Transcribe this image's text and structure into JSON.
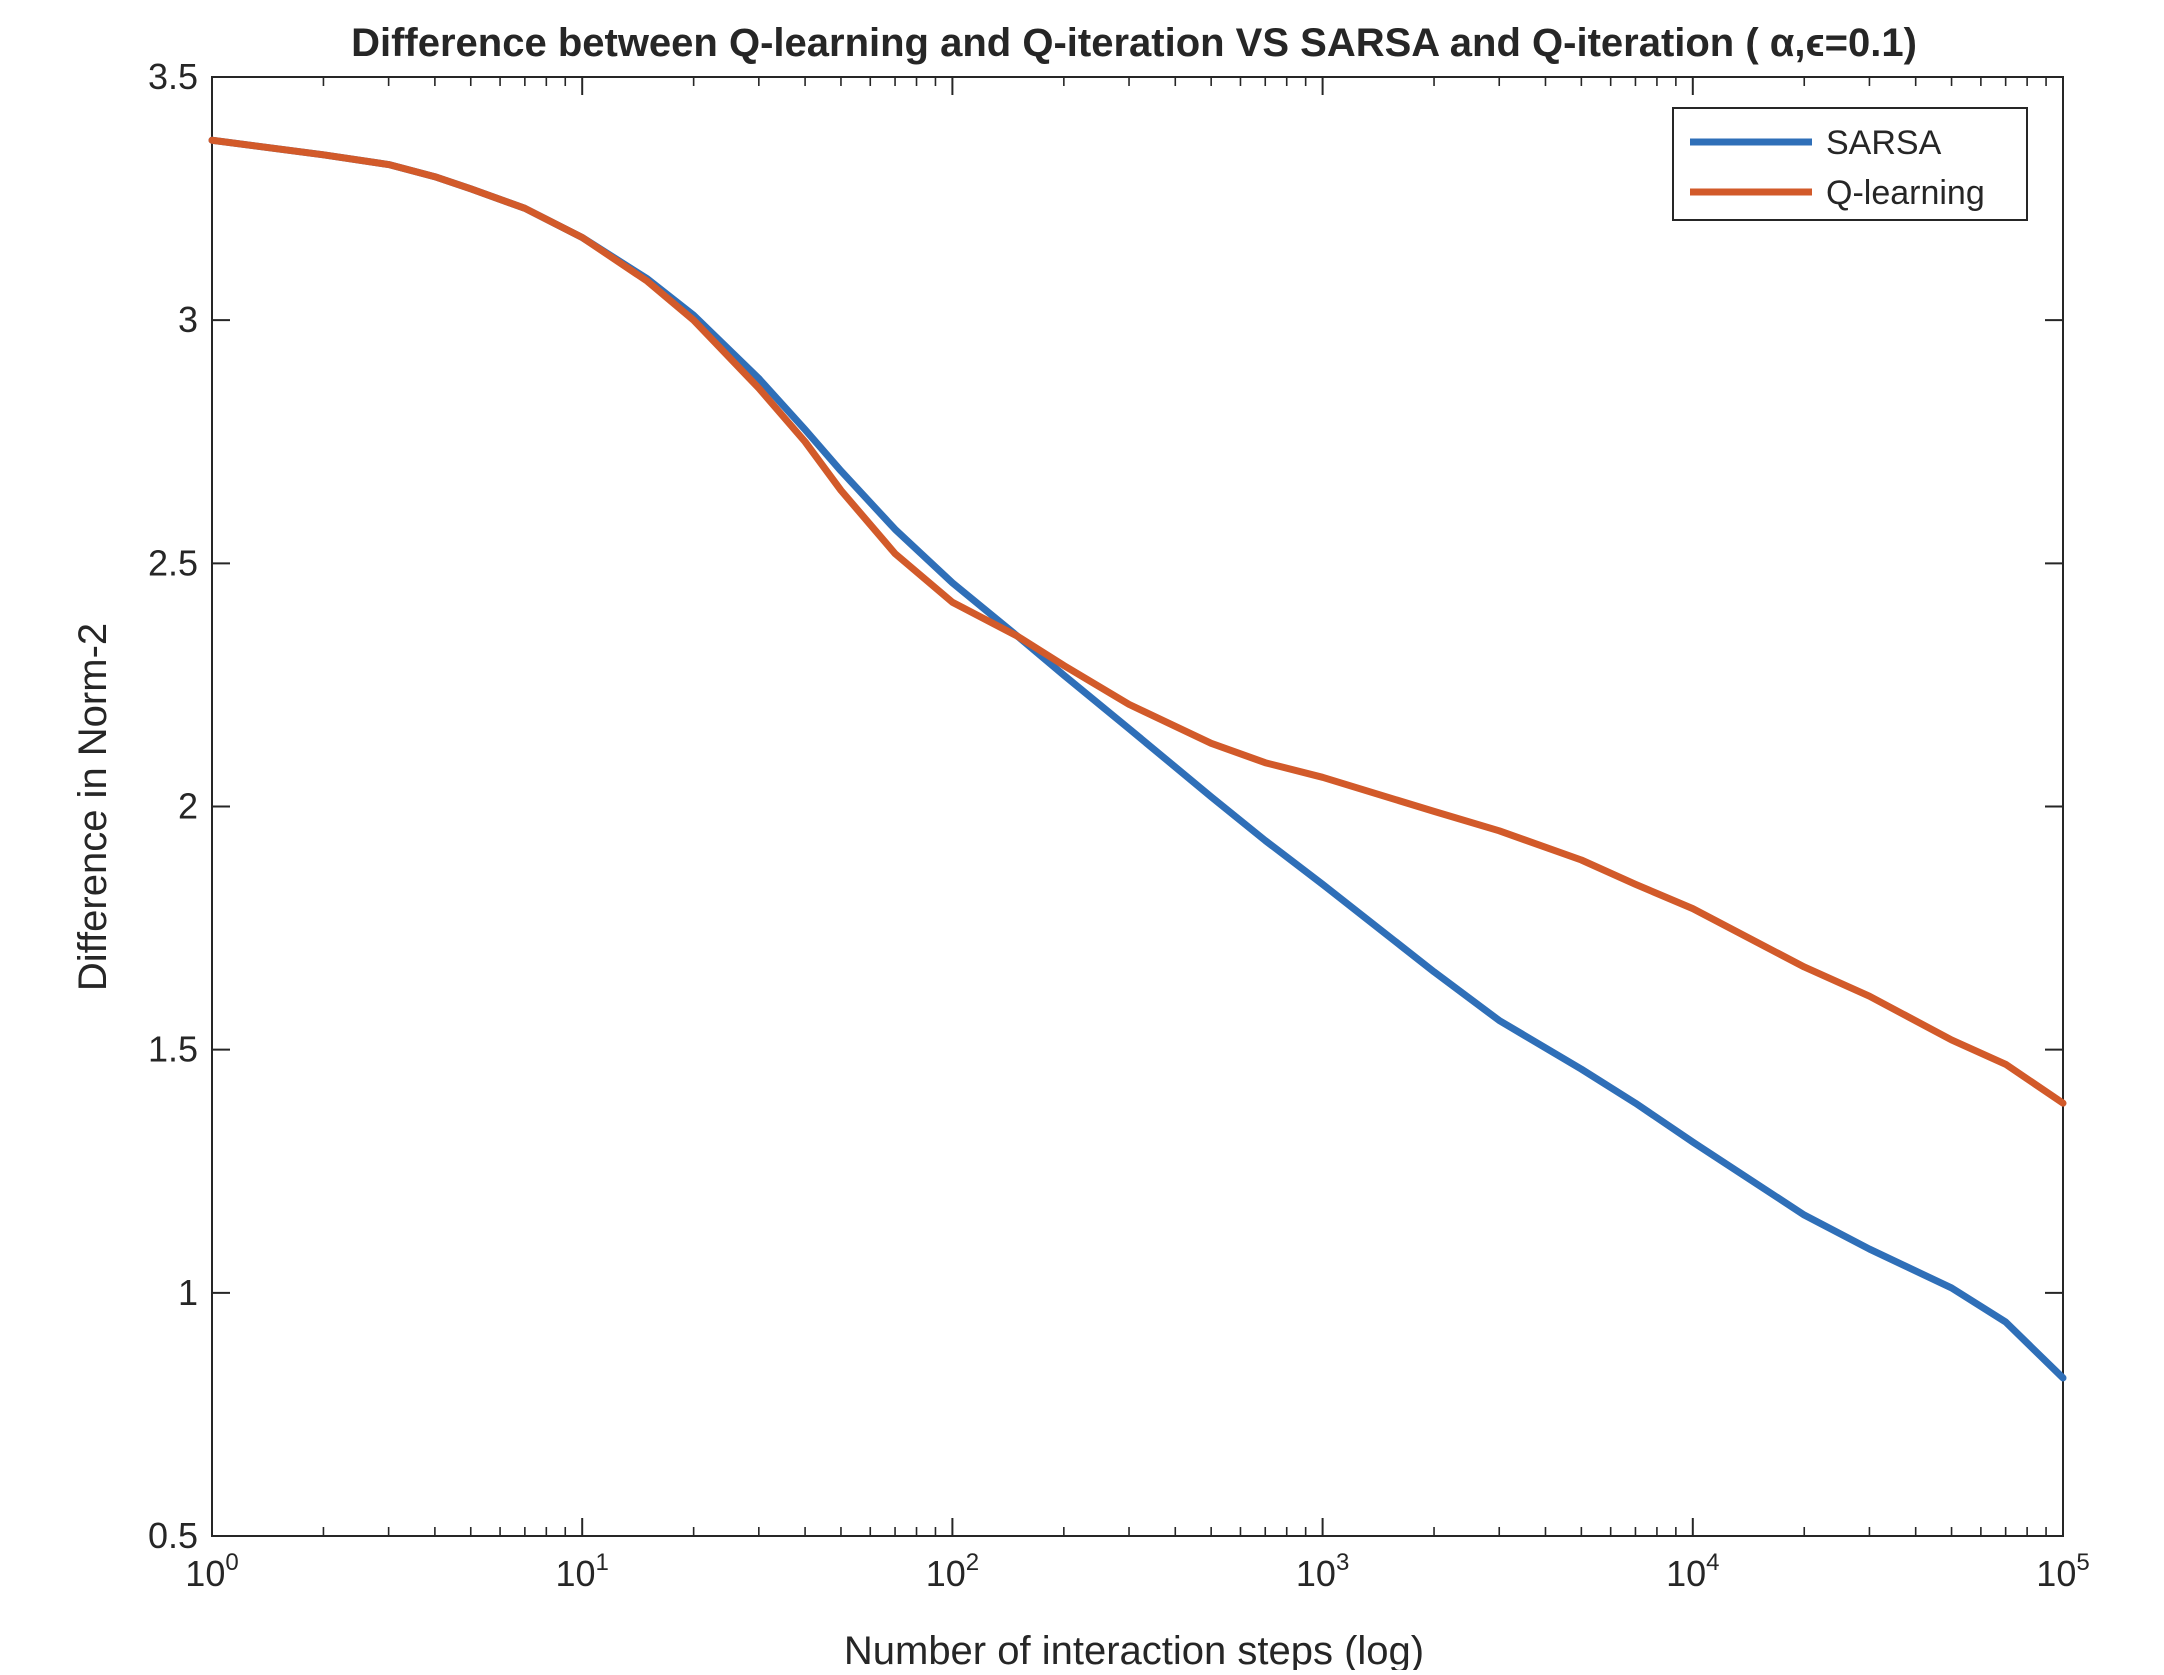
{
  "chart_data": {
    "type": "line",
    "title": "Difference between Q-learning and Q-iteration VS SARSA and Q-iteration ( α,ϵ=0.1)",
    "xlabel": "Number of interaction steps (log)",
    "ylabel": "Difference in Norm-2",
    "x_scale": "log",
    "xlim": [
      1,
      100000
    ],
    "ylim": [
      0.5,
      3.5
    ],
    "x_ticks": [
      {
        "base": "10",
        "exp": "0",
        "value": 1
      },
      {
        "base": "10",
        "exp": "1",
        "value": 10
      },
      {
        "base": "10",
        "exp": "2",
        "value": 100
      },
      {
        "base": "10",
        "exp": "3",
        "value": 1000
      },
      {
        "base": "10",
        "exp": "4",
        "value": 10000
      },
      {
        "base": "10",
        "exp": "5",
        "value": 100000
      }
    ],
    "y_ticks": [
      "0.5",
      "1",
      "1.5",
      "2",
      "2.5",
      "3",
      "3.5"
    ],
    "grid": false,
    "legend_position": "top-right",
    "series": [
      {
        "name": "SARSA",
        "color": "#2f6fb8",
        "x": [
          1,
          2,
          3,
          4,
          5,
          7,
          10,
          15,
          20,
          30,
          40,
          50,
          70,
          100,
          150,
          200,
          300,
          500,
          700,
          1000,
          2000,
          3000,
          5000,
          7000,
          10000,
          20000,
          30000,
          50000,
          70000,
          100000
        ],
        "y": [
          3.37,
          3.34,
          3.32,
          3.295,
          3.27,
          3.23,
          3.17,
          3.085,
          3.01,
          2.88,
          2.775,
          2.69,
          2.57,
          2.46,
          2.35,
          2.27,
          2.16,
          2.02,
          1.93,
          1.84,
          1.66,
          1.56,
          1.46,
          1.39,
          1.31,
          1.16,
          1.09,
          1.01,
          0.94,
          0.825
        ]
      },
      {
        "name": "Q-learning",
        "color": "#d25a2a",
        "x": [
          1,
          2,
          3,
          4,
          5,
          7,
          10,
          15,
          20,
          30,
          40,
          50,
          70,
          100,
          150,
          200,
          300,
          500,
          700,
          1000,
          2000,
          3000,
          5000,
          7000,
          10000,
          20000,
          30000,
          50000,
          70000,
          100000
        ],
        "y": [
          3.37,
          3.34,
          3.32,
          3.295,
          3.27,
          3.23,
          3.17,
          3.08,
          3.0,
          2.86,
          2.75,
          2.65,
          2.52,
          2.42,
          2.35,
          2.29,
          2.21,
          2.13,
          2.09,
          2.06,
          1.99,
          1.95,
          1.89,
          1.84,
          1.79,
          1.67,
          1.61,
          1.52,
          1.47,
          1.39
        ]
      }
    ]
  }
}
